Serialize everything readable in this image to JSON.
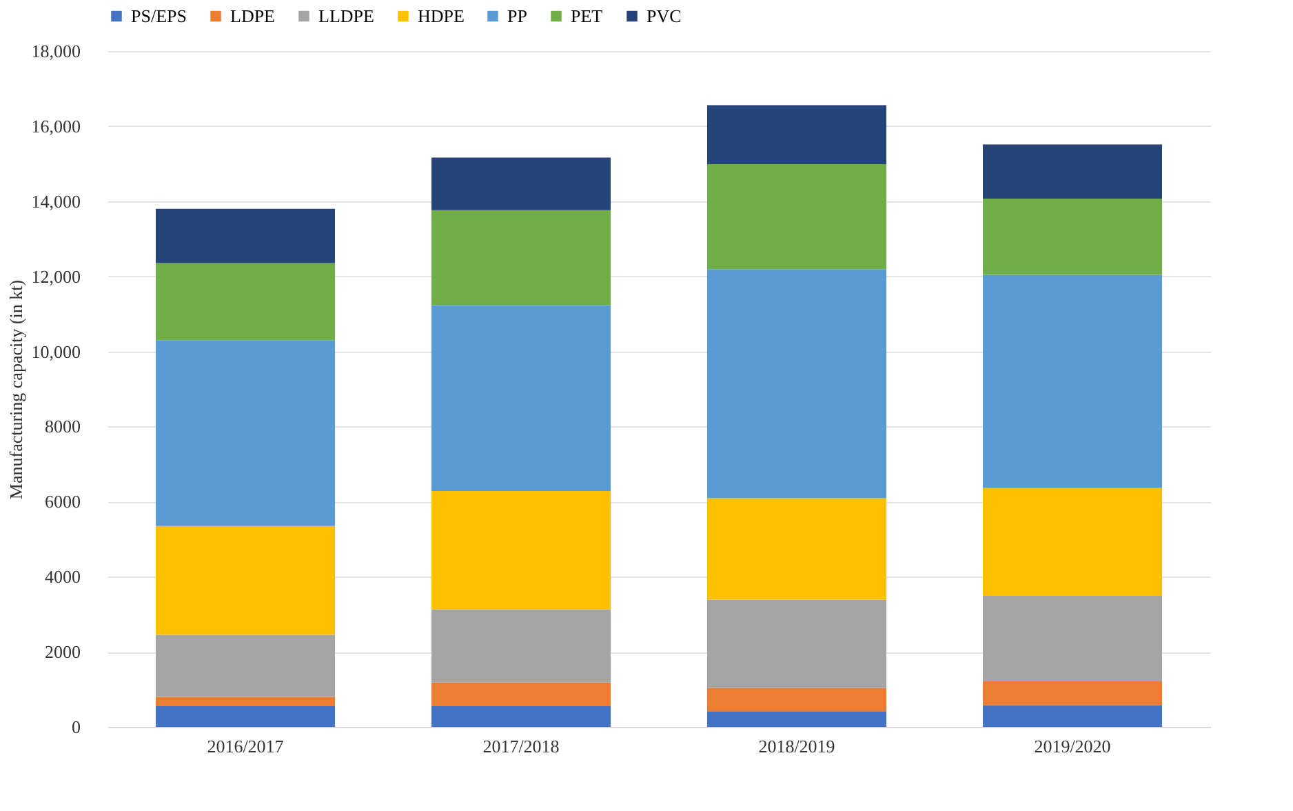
{
  "chart_data": {
    "type": "bar",
    "stacked": true,
    "ylabel": "Manufacturing capacity (in kt)",
    "categories": [
      "2016/2017",
      "2017/2018",
      "2018/2019",
      "2019/2020"
    ],
    "series": [
      {
        "name": "PS/EPS",
        "color": "#4472c4",
        "values": [
          550,
          550,
          420,
          580
        ]
      },
      {
        "name": "LDPE",
        "color": "#ed7d31",
        "values": [
          250,
          630,
          620,
          630
        ]
      },
      {
        "name": "LLDPE",
        "color": "#a5a5a5",
        "values": [
          1650,
          1950,
          2350,
          2280
        ]
      },
      {
        "name": "HDPE",
        "color": "#ffc000",
        "values": [
          2900,
          3150,
          2700,
          2870
        ]
      },
      {
        "name": "PP",
        "color": "#5b9bd5",
        "values": [
          4950,
          4950,
          6100,
          5680
        ]
      },
      {
        "name": "PET",
        "color": "#70ad47",
        "values": [
          2050,
          2530,
          2800,
          2030
        ]
      },
      {
        "name": "PVC",
        "color": "#264478",
        "values": [
          1450,
          1400,
          1570,
          1440
        ]
      }
    ],
    "ylim": [
      0,
      18000
    ],
    "yticks": [
      0,
      2000,
      4000,
      6000,
      8000,
      {
        "value": 10000,
        "label": "10,000"
      },
      {
        "value": 12000,
        "label": "12,000"
      },
      {
        "value": 14000,
        "label": "14,000"
      },
      {
        "value": 16000,
        "label": "16,000"
      },
      {
        "value": 18000,
        "label": "18,000"
      }
    ],
    "grid": "y",
    "legend": "top"
  }
}
